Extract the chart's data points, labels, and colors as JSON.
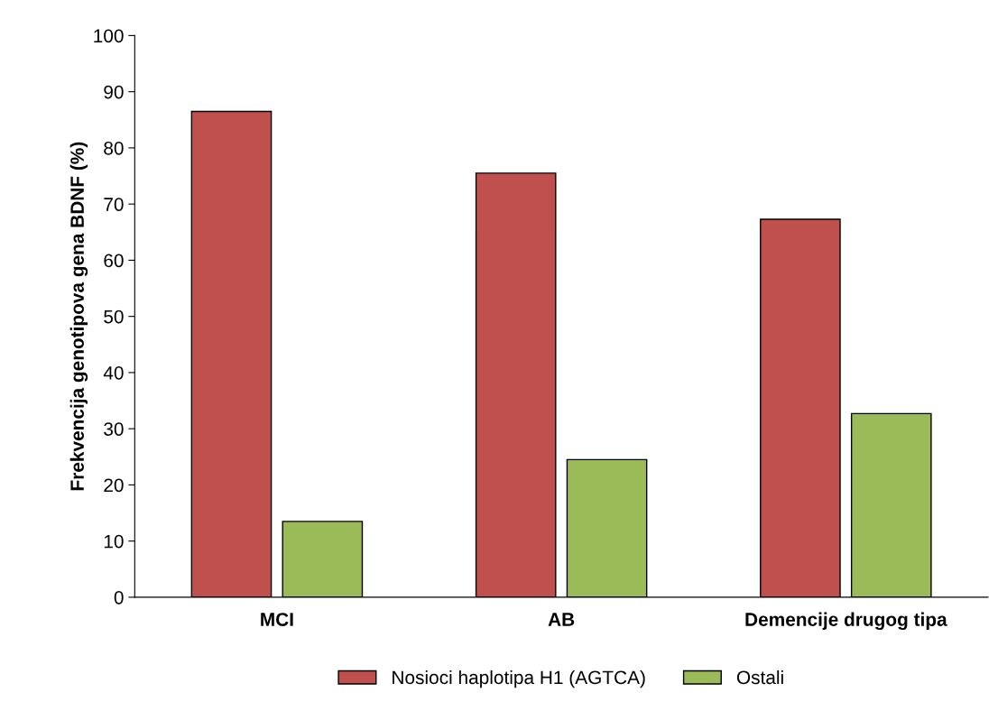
{
  "chart_data": {
    "type": "bar",
    "ylabel": "Frekvencija genotipova gena BDNF (%)",
    "categories": [
      "MCI",
      "AB",
      "Demencije drugog tipa"
    ],
    "series": [
      {
        "name": "Nosioci haplotipa H1 (AGTCA)",
        "color": "#c0504d",
        "values": [
          86.5,
          75.5,
          67.3
        ]
      },
      {
        "name": "Ostali",
        "color": "#9bbb59",
        "values": [
          13.5,
          24.5,
          32.7
        ]
      }
    ],
    "ylim": [
      0,
      100
    ],
    "yticks": [
      0,
      10,
      20,
      30,
      40,
      50,
      60,
      70,
      80,
      90,
      100
    ],
    "grid": false,
    "legend": "bottom"
  }
}
